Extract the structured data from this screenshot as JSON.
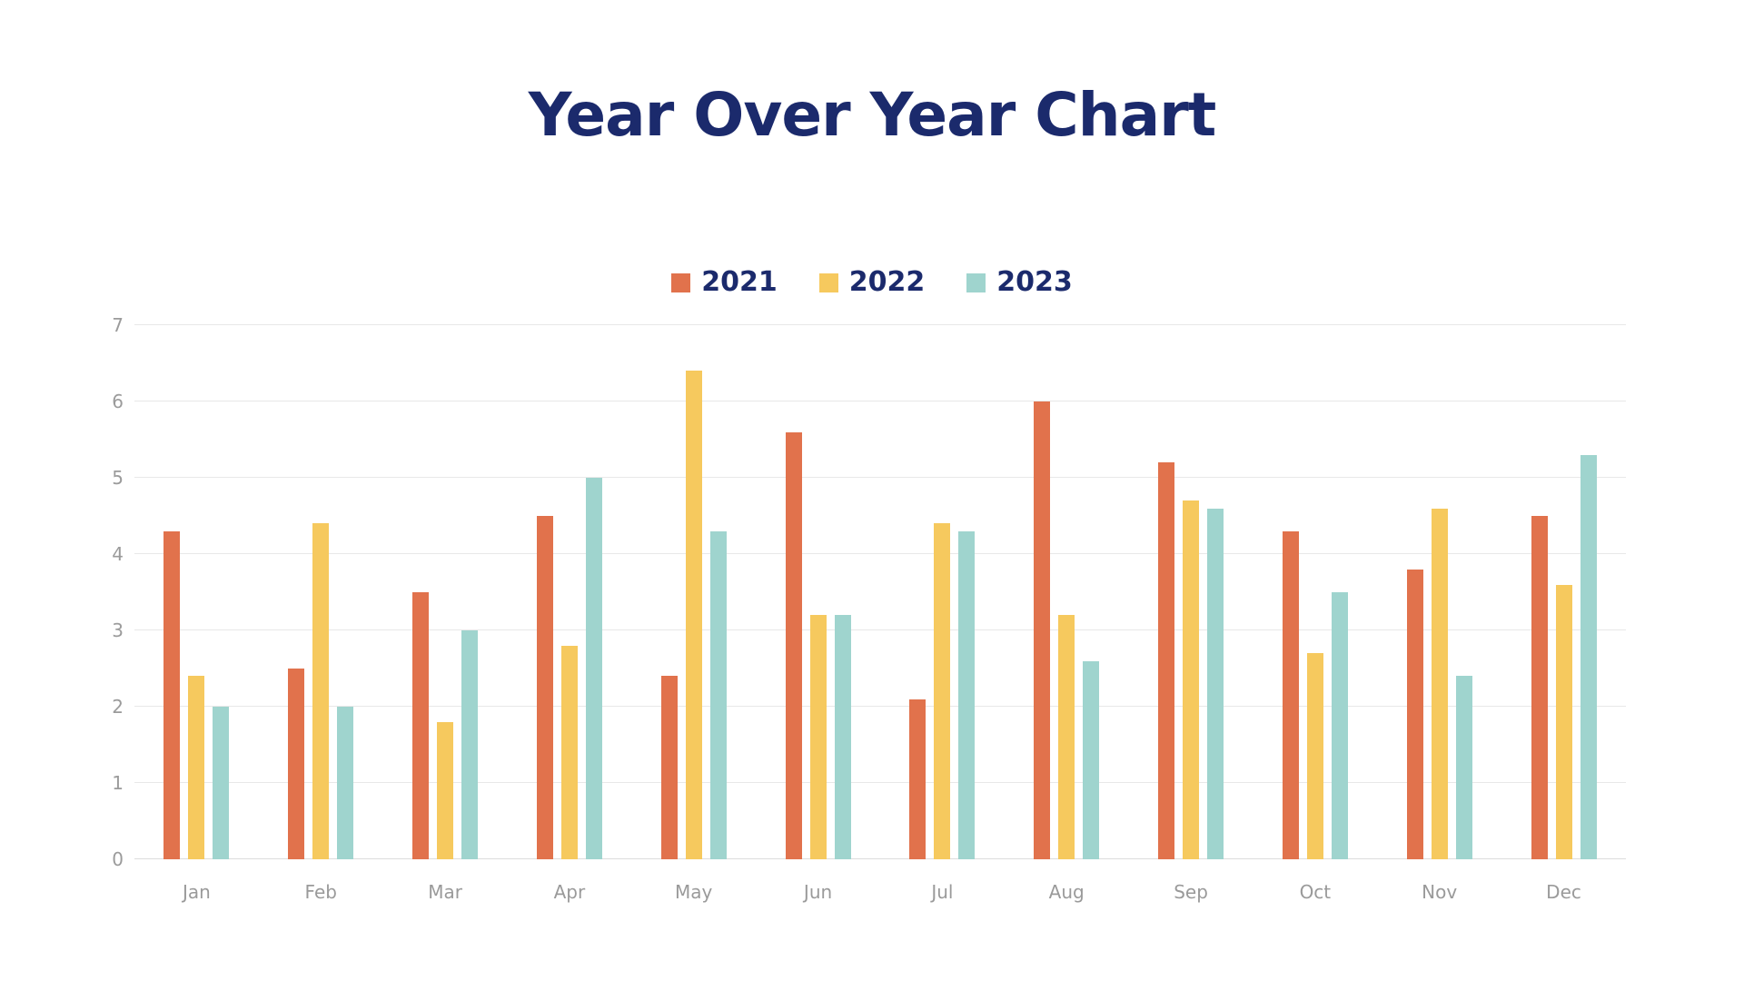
{
  "title": "Year Over Year Chart",
  "colors": {
    "title_navy": "#1B2A6C",
    "axis_gray": "#9B9B9B",
    "gridline": "#E8E8E8",
    "background": "#FFFFFF"
  },
  "chart_data": {
    "type": "bar",
    "title": "Year Over Year Chart",
    "categories": [
      "Jan",
      "Feb",
      "Mar",
      "Apr",
      "May",
      "Jun",
      "Jul",
      "Aug",
      "Sep",
      "Oct",
      "Nov",
      "Dec"
    ],
    "series": [
      {
        "name": "2021",
        "color": "#E1724C",
        "values": [
          4.3,
          2.5,
          3.5,
          4.5,
          2.4,
          5.6,
          2.1,
          6.0,
          5.2,
          4.3,
          3.8,
          4.5
        ]
      },
      {
        "name": "2022",
        "color": "#F6C95E",
        "values": [
          2.4,
          4.4,
          1.8,
          2.8,
          6.4,
          3.2,
          4.4,
          3.2,
          4.7,
          2.7,
          4.6,
          3.6
        ]
      },
      {
        "name": "2023",
        "color": "#9FD4CE",
        "values": [
          2.0,
          2.0,
          3.0,
          5.0,
          4.3,
          3.2,
          4.3,
          2.6,
          4.6,
          3.5,
          2.4,
          5.3
        ]
      }
    ],
    "xlabel": "",
    "ylabel": "",
    "ylim": [
      0,
      7
    ],
    "yticks": [
      0,
      1,
      2,
      3,
      4,
      5,
      6,
      7
    ],
    "grid": true,
    "legend_position": "top-center"
  }
}
